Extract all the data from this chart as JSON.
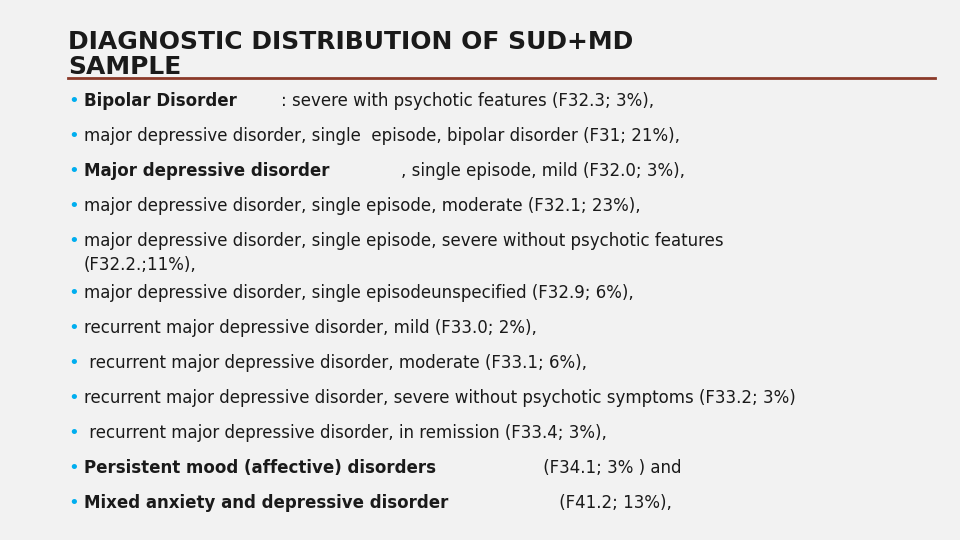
{
  "title_line1": "DIAGNOSTIC DISTRIBUTION OF SUD+MD",
  "title_line2": "SAMPLE",
  "title_color": "#1a1a1a",
  "title_fontsize": 18,
  "bg_color": "#f2f2f2",
  "rule_color": "#8B3A2A",
  "bullet_color": "#00AEEF",
  "text_color": "#1a1a1a",
  "bullet_fontsize": 12,
  "bullets": [
    {
      "bold_part": "Bipolar Disorder",
      "rest": ": severe with psychotic features (F32.3; 3%),",
      "two_line": false
    },
    {
      "bold_part": "",
      "rest": "major depressive disorder, single  episode, bipolar disorder (F31; 21%),",
      "two_line": false
    },
    {
      "bold_part": "Major depressive disorder",
      "rest": ", single episode, mild (F32.0; 3%),",
      "two_line": false
    },
    {
      "bold_part": "",
      "rest": "major depressive disorder, single episode, moderate (F32.1; 23%),",
      "two_line": false
    },
    {
      "bold_part": "",
      "rest": "major depressive disorder, single episode, severe without psychotic features\n(F32.2.;11%),",
      "two_line": true
    },
    {
      "bold_part": "",
      "rest": "major depressive disorder, single episodeunspecified (F32.9; 6%),",
      "two_line": false
    },
    {
      "bold_part": "",
      "rest": "recurrent major depressive disorder, mild (F33.0; 2%),",
      "two_line": false
    },
    {
      "bold_part": "",
      "rest": " recurrent major depressive disorder, moderate (F33.1; 6%),",
      "two_line": false
    },
    {
      "bold_part": "",
      "rest": "recurrent major depressive disorder, severe without psychotic symptoms (F33.2; 3%)",
      "two_line": false
    },
    {
      "bold_part": "",
      "rest": " recurrent major depressive disorder, in remission (F33.4; 3%),",
      "two_line": false
    },
    {
      "bold_part": "Persistent mood (affective) disorders",
      "rest": " (F34.1; 3% ) and",
      "two_line": false
    },
    {
      "bold_part": "Mixed anxiety and depressive disorder",
      "rest": " (F41.2; 13%),",
      "two_line": false
    }
  ]
}
